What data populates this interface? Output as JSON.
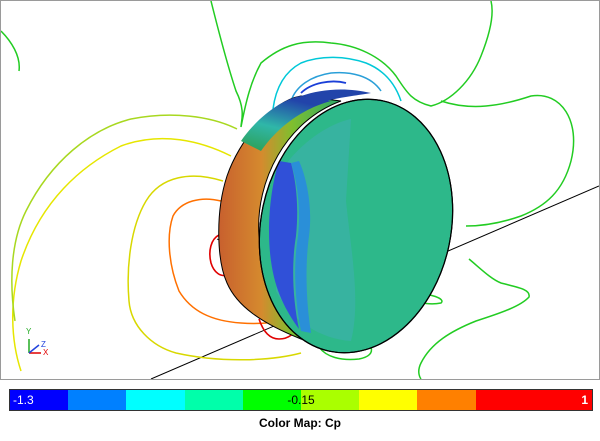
{
  "viewport": {
    "axis_labels": {
      "x": "X",
      "y": "Y",
      "z": "Z"
    }
  },
  "colorbar": {
    "min_label": "-1.3",
    "mid_label": "-0.15",
    "max_label": "1",
    "segments": [
      "#0000ff",
      "#0080ff",
      "#00ffff",
      "#00ffaa",
      "#00ff00",
      "#aaff00",
      "#ffff00",
      "#ff8000",
      "#ff0000",
      "#ff0000"
    ],
    "title": "Color Map: Cp"
  },
  "colors": {
    "disk_face": "#2db88a",
    "disk_side_warm": "#d4702a",
    "contour_green": "#22cc22",
    "contour_cyan": "#00c8d8",
    "contour_blue": "#1a3fd8",
    "contour_yellow": "#e6e600",
    "contour_orange": "#ff7000",
    "contour_red": "#e00000"
  }
}
